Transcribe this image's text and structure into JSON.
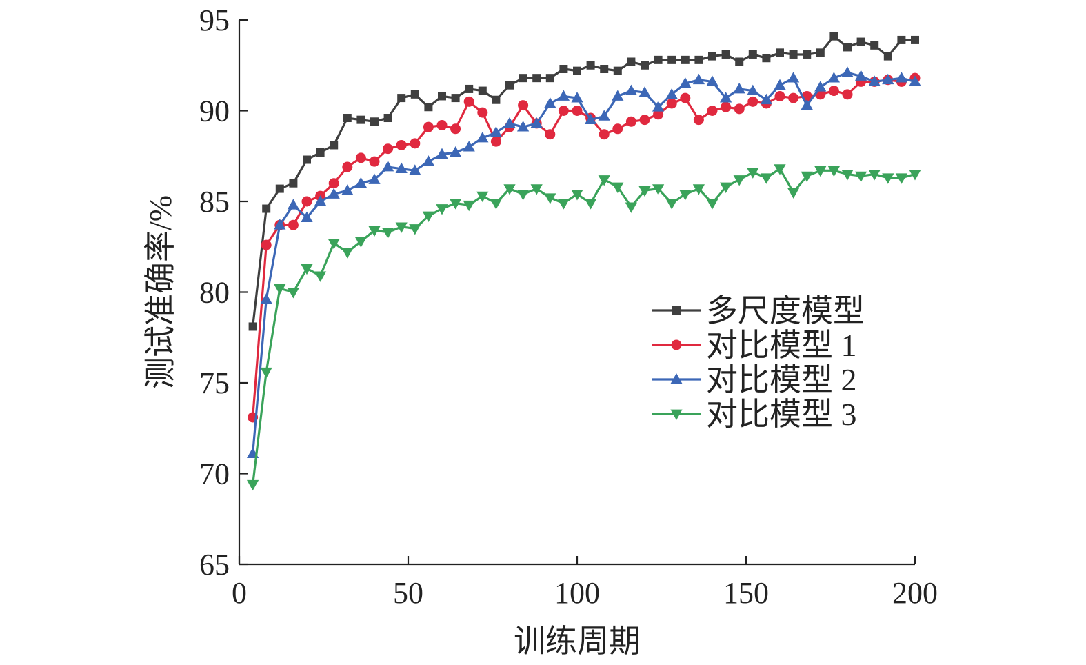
{
  "chart_data": {
    "type": "line",
    "xlabel": "训练周期",
    "ylabel": "测试准确率/%",
    "xlim": [
      0,
      200
    ],
    "ylim": [
      65,
      95
    ],
    "xticks": [
      0,
      50,
      100,
      150,
      200
    ],
    "yticks": [
      65,
      70,
      75,
      80,
      85,
      90,
      95
    ],
    "grid": false,
    "legend_position": "center-right",
    "x": [
      4,
      8,
      12,
      16,
      20,
      24,
      28,
      32,
      36,
      40,
      44,
      48,
      52,
      56,
      60,
      64,
      68,
      72,
      76,
      80,
      84,
      88,
      92,
      96,
      100,
      104,
      108,
      112,
      116,
      120,
      124,
      128,
      132,
      136,
      140,
      144,
      148,
      152,
      156,
      160,
      164,
      168,
      172,
      176,
      180,
      184,
      188,
      192,
      196,
      200
    ],
    "series": [
      {
        "name": "多尺度模型",
        "color": "#3f3f3f",
        "marker": "square",
        "values": [
          78.1,
          84.6,
          85.7,
          86.0,
          87.3,
          87.7,
          88.1,
          89.6,
          89.5,
          89.4,
          89.6,
          90.7,
          90.9,
          90.2,
          90.8,
          90.7,
          91.2,
          91.1,
          90.6,
          91.4,
          91.8,
          91.8,
          91.8,
          92.3,
          92.2,
          92.5,
          92.3,
          92.2,
          92.7,
          92.5,
          92.8,
          92.8,
          92.8,
          92.8,
          93.0,
          93.1,
          92.7,
          93.1,
          92.9,
          93.2,
          93.1,
          93.1,
          93.2,
          94.1,
          93.5,
          93.8,
          93.6,
          93.0,
          93.9,
          93.9
        ]
      },
      {
        "name": "对比模型 1",
        "color": "#e0293f",
        "marker": "circle",
        "values": [
          73.1,
          82.6,
          83.7,
          83.7,
          85.0,
          85.3,
          86.0,
          86.9,
          87.4,
          87.2,
          87.9,
          88.1,
          88.2,
          89.1,
          89.2,
          89.0,
          90.5,
          89.9,
          88.3,
          89.1,
          90.3,
          89.3,
          88.7,
          90.0,
          90.0,
          89.6,
          88.7,
          89.0,
          89.4,
          89.5,
          89.8,
          90.4,
          90.7,
          89.5,
          90.0,
          90.2,
          90.1,
          90.5,
          90.4,
          90.8,
          90.7,
          90.8,
          90.9,
          91.1,
          90.9,
          91.6,
          91.6,
          91.7,
          91.6,
          91.8
        ]
      },
      {
        "name": "对比模型 2",
        "color": "#3c67b6",
        "marker": "triangle-up",
        "values": [
          71.1,
          79.6,
          83.7,
          84.8,
          84.1,
          85.0,
          85.4,
          85.6,
          86.0,
          86.2,
          86.9,
          86.8,
          86.7,
          87.2,
          87.6,
          87.7,
          88.0,
          88.5,
          88.8,
          89.3,
          89.1,
          89.3,
          90.4,
          90.8,
          90.7,
          89.5,
          89.7,
          90.8,
          91.1,
          91.0,
          90.2,
          90.9,
          91.5,
          91.7,
          91.6,
          90.7,
          91.2,
          91.1,
          90.6,
          91.4,
          91.8,
          90.3,
          91.3,
          91.8,
          92.1,
          91.9,
          91.6,
          91.7,
          91.8,
          91.6
        ]
      },
      {
        "name": "对比模型 3",
        "color": "#3aa35a",
        "marker": "triangle-down",
        "values": [
          69.4,
          75.6,
          80.2,
          80.0,
          81.3,
          80.9,
          82.7,
          82.2,
          82.8,
          83.4,
          83.3,
          83.6,
          83.5,
          84.2,
          84.6,
          84.9,
          84.8,
          85.3,
          84.9,
          85.7,
          85.4,
          85.7,
          85.2,
          84.9,
          85.4,
          84.9,
          86.2,
          85.8,
          84.7,
          85.6,
          85.7,
          84.9,
          85.4,
          85.7,
          84.9,
          85.8,
          86.2,
          86.6,
          86.3,
          86.8,
          85.5,
          86.4,
          86.7,
          86.7,
          86.5,
          86.4,
          86.5,
          86.3,
          86.3,
          86.5
        ]
      }
    ]
  }
}
